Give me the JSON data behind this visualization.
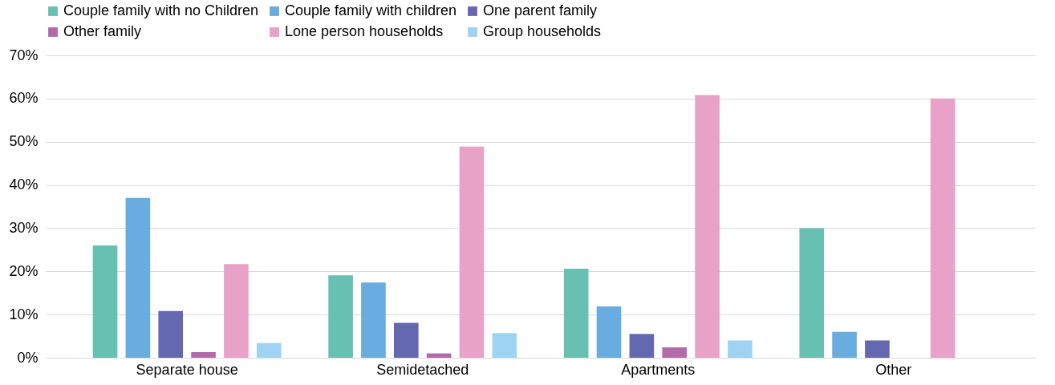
{
  "chart_data": {
    "type": "bar",
    "categories": [
      "Separate house",
      "Semidetached",
      "Apartments",
      "Other"
    ],
    "series": [
      {
        "name": "Couple family with no Children",
        "color": "#68c0b3",
        "values": [
          26,
          19.1,
          20.6,
          30
        ]
      },
      {
        "name": "Couple family with children",
        "color": "#69acdf",
        "values": [
          37,
          17.4,
          11.9,
          6
        ]
      },
      {
        "name": "One parent family",
        "color": "#6468b0",
        "values": [
          10.8,
          8.1,
          5.5,
          4
        ]
      },
      {
        "name": "Other family",
        "color": "#b26aaa",
        "values": [
          1.3,
          1,
          2.4,
          0
        ]
      },
      {
        "name": "Lone person households",
        "color": "#e8a2c7",
        "values": [
          21.7,
          48.9,
          60.8,
          60
        ]
      },
      {
        "name": "Group households",
        "color": "#9ed3f3",
        "values": [
          3.4,
          5.7,
          4,
          0
        ]
      }
    ],
    "ylim": [
      0,
      70
    ],
    "yticks": [
      {
        "value": 0,
        "label": "0%"
      },
      {
        "value": 10,
        "label": "10%"
      },
      {
        "value": 20,
        "label": "20%"
      },
      {
        "value": 30,
        "label": "30%"
      },
      {
        "value": 40,
        "label": "40%"
      },
      {
        "value": 50,
        "label": "50%"
      },
      {
        "value": 60,
        "label": "60%"
      },
      {
        "value": 70,
        "label": "70%"
      }
    ],
    "grid": "y",
    "legend": "top"
  }
}
